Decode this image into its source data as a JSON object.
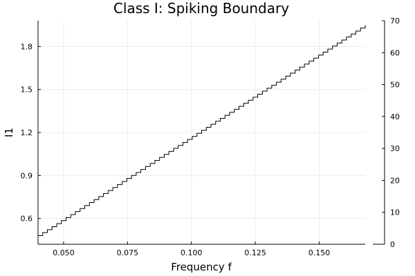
{
  "chart_data": {
    "type": "line",
    "title": "Class I: Spiking Boundary",
    "xlabel": "Frequency f",
    "ylabel": "I1",
    "xlim": [
      0.04,
      0.168
    ],
    "ylim": [
      0.42,
      1.98
    ],
    "xticks": [
      0.05,
      0.075,
      0.1,
      0.125,
      0.15
    ],
    "xtick_labels": [
      "0.050",
      "0.075",
      "0.100",
      "0.125",
      "0.150"
    ],
    "yticks": [
      0.6,
      0.9,
      1.2,
      1.5,
      1.8
    ],
    "ytick_labels": [
      "0.6",
      "0.9",
      "1.2",
      "1.5",
      "1.8"
    ],
    "y2lim": [
      0,
      70
    ],
    "y2ticks": [
      0,
      10,
      20,
      30,
      40,
      50,
      60,
      70
    ],
    "y2tick_labels": [
      "0",
      "10",
      "20",
      "30",
      "40",
      "50",
      "60",
      "70"
    ],
    "grid": true,
    "legend": "none",
    "series": [
      {
        "style": "steps",
        "color": "#000000",
        "x": [
          0.04,
          0.168
        ],
        "y": [
          0.48,
          1.95
        ],
        "steps": 70
      }
    ],
    "secondary_series": [
      {
        "style": "line",
        "color": "#000000",
        "x": [
          0.164,
          0.168
        ],
        "y": [
          0,
          0
        ]
      }
    ]
  }
}
